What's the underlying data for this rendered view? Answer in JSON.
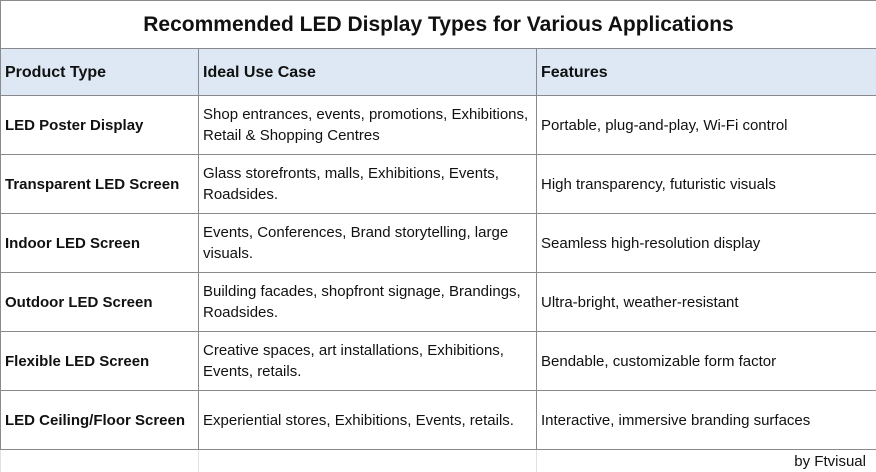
{
  "title": "Recommended LED Display Types for Various Applications",
  "table": {
    "header": [
      "Product Type",
      "Ideal Use Case",
      "Features"
    ],
    "rows": [
      [
        "LED Poster Display",
        "Shop entrances, events, promotions, Exhibitions, Retail & Shopping Centres",
        "Portable, plug-and-play, Wi-Fi control"
      ],
      [
        "Transparent LED Screen",
        "Glass storefronts, malls, Exhibitions, Events, Roadsides.",
        "High transparency, futuristic visuals"
      ],
      [
        "Indoor LED Screen",
        "Events, Conferences, Brand storytelling, large visuals.",
        "Seamless high-resolution display"
      ],
      [
        "Outdoor LED Screen",
        "Building facades, shopfront signage, Brandings, Roadsides.",
        "Ultra-bright, weather-resistant"
      ],
      [
        "Flexible LED Screen",
        "Creative spaces, art installations, Exhibitions, Events, retails.",
        "Bendable, customizable form factor"
      ],
      [
        "LED Ceiling/Floor Screen",
        "Experiential stores, Exhibitions, Events, retails.",
        "Interactive, immersive branding surfaces"
      ]
    ]
  },
  "footer": "by Ftvisual"
}
